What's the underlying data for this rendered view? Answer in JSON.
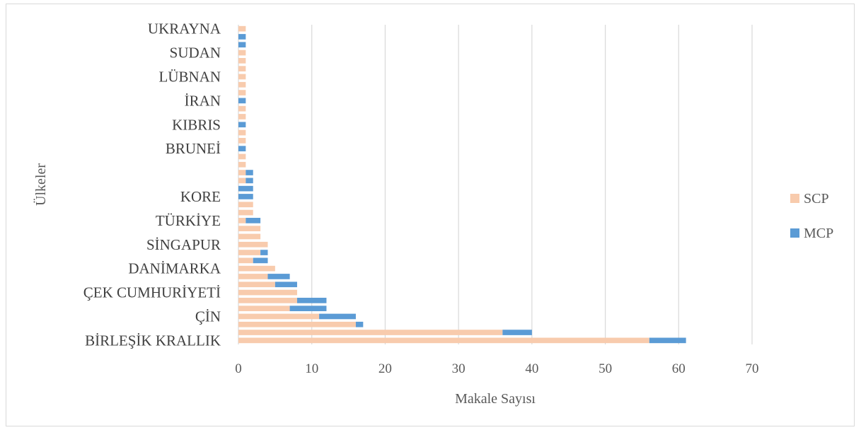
{
  "chart_data": {
    "type": "bar",
    "orientation": "horizontal",
    "stacked": true,
    "xlabel": "Makale Sayısı",
    "ylabel": "Ülkeler",
    "xlim": [
      0,
      70
    ],
    "xticks": [
      0,
      10,
      20,
      30,
      40,
      50,
      60,
      70
    ],
    "grid": true,
    "legend_position": "right",
    "category_labels_bottom_to_top": [
      "BİRLEŞİK KRALLIK",
      "",
      "",
      "ÇİN",
      "",
      "",
      "ÇEK CUMHURİYETİ",
      "",
      "",
      "DANİMARKA",
      "",
      "",
      "SİNGAPUR",
      "",
      "",
      "TÜRKİYE",
      "",
      "",
      "KORE",
      "",
      "",
      "",
      "",
      "",
      "BRUNEİ",
      "",
      "",
      "KIBRIS",
      "",
      "",
      "İRAN",
      "",
      "",
      "LÜBNAN",
      "",
      "",
      "SUDAN",
      "",
      "",
      "UKRAYNA"
    ],
    "series": [
      {
        "name": "SCP",
        "color": "#f8cbad",
        "values": [
          56,
          36,
          16,
          11,
          7,
          8,
          8,
          5,
          4,
          5,
          2,
          3,
          4,
          3,
          3,
          1,
          2,
          2,
          0,
          0,
          1,
          1,
          1,
          1,
          0,
          1,
          1,
          0,
          1,
          1,
          0,
          1,
          1,
          1,
          1,
          1,
          1,
          0,
          0,
          1
        ]
      },
      {
        "name": "MCP",
        "color": "#5b9bd5",
        "values": [
          5,
          4,
          1,
          5,
          5,
          4,
          0,
          3,
          3,
          0,
          2,
          1,
          0,
          0,
          0,
          2,
          0,
          0,
          2,
          2,
          1,
          1,
          0,
          0,
          1,
          0,
          0,
          1,
          0,
          0,
          1,
          0,
          0,
          0,
          0,
          0,
          0,
          1,
          1,
          0
        ]
      }
    ]
  }
}
